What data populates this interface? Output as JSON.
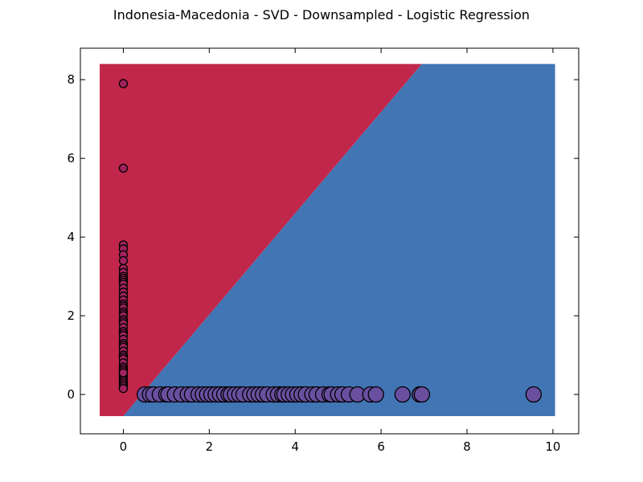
{
  "chart_data": {
    "type": "scatter",
    "title": "Indonesia-Macedonia - SVD - Downsampled - Logistic Regression",
    "xlabel": "",
    "ylabel": "",
    "xlim": [
      -1,
      10.6
    ],
    "ylim": [
      -1,
      8.8
    ],
    "xticks": [
      0,
      2,
      4,
      6,
      8,
      10
    ],
    "yticks": [
      0,
      2,
      4,
      6,
      8
    ],
    "xtick_labels": [
      "0",
      "2",
      "4",
      "6",
      "8",
      "10"
    ],
    "ytick_labels": [
      "0",
      "2",
      "4",
      "6",
      "8"
    ],
    "grid": false,
    "legend": "none",
    "decision_regions": {
      "x_range": [
        -0.55,
        10.05
      ],
      "y_range": [
        -0.55,
        8.4
      ],
      "boundary": [
        [
          0.0,
          -0.55
        ],
        [
          6.95,
          8.4
        ]
      ],
      "upper_left_color": "#c1274a",
      "lower_right_color": "#4175b4"
    },
    "series": [
      {
        "color": "#a0235d",
        "marker_size": "small",
        "x": [
          0,
          0,
          0,
          0,
          0,
          0,
          0,
          0,
          0,
          0,
          0,
          0,
          0,
          0,
          0,
          0,
          0,
          0,
          0,
          0,
          0,
          0,
          0,
          0,
          0,
          0,
          0,
          0,
          0,
          0,
          0,
          0,
          0,
          0,
          0,
          0,
          0,
          0,
          0,
          0,
          0,
          0,
          0,
          0,
          0,
          0,
          0,
          0,
          0,
          0,
          0
        ],
        "y": [
          7.9,
          5.75,
          3.8,
          3.7,
          3.55,
          3.4,
          3.2,
          3.1,
          3.0,
          2.95,
          2.9,
          2.85,
          2.8,
          2.7,
          2.6,
          2.5,
          2.4,
          2.3,
          2.25,
          2.2,
          2.1,
          2.05,
          2.0,
          1.9,
          1.85,
          1.8,
          1.7,
          1.6,
          1.55,
          1.5,
          1.4,
          1.3,
          1.25,
          1.2,
          1.1,
          1.0,
          0.95,
          0.9,
          0.8,
          0.7,
          0.65,
          0.6,
          0.5,
          0.45,
          0.4,
          0.35,
          0.3,
          0.25,
          0.2,
          0.15,
          0.55
        ]
      },
      {
        "color": "#6a4fa0",
        "marker_size": "large",
        "x": [
          0.5,
          0.62,
          0.7,
          0.85,
          1.0,
          1.05,
          1.2,
          1.35,
          1.5,
          1.6,
          1.75,
          1.85,
          1.95,
          2.05,
          2.15,
          2.25,
          2.35,
          2.45,
          2.5,
          2.6,
          2.7,
          2.8,
          2.95,
          3.05,
          3.15,
          3.25,
          3.35,
          3.5,
          3.6,
          3.7,
          3.75,
          3.85,
          3.95,
          4.05,
          4.15,
          4.25,
          4.4,
          4.5,
          4.65,
          4.8,
          4.85,
          5.0,
          5.1,
          5.25,
          5.45,
          5.75,
          5.88,
          6.5,
          6.9,
          6.95,
          9.55
        ],
        "y": [
          0,
          0,
          0,
          0,
          0,
          0,
          0,
          0,
          0,
          0,
          0,
          0,
          0,
          0,
          0,
          0,
          0,
          0,
          0,
          0,
          0,
          0,
          0,
          0,
          0,
          0,
          0,
          0,
          0,
          0,
          0,
          0,
          0,
          0,
          0,
          0,
          0,
          0,
          0,
          0,
          0,
          0,
          0,
          0,
          0,
          0,
          0,
          0,
          0,
          0,
          0
        ]
      }
    ]
  }
}
